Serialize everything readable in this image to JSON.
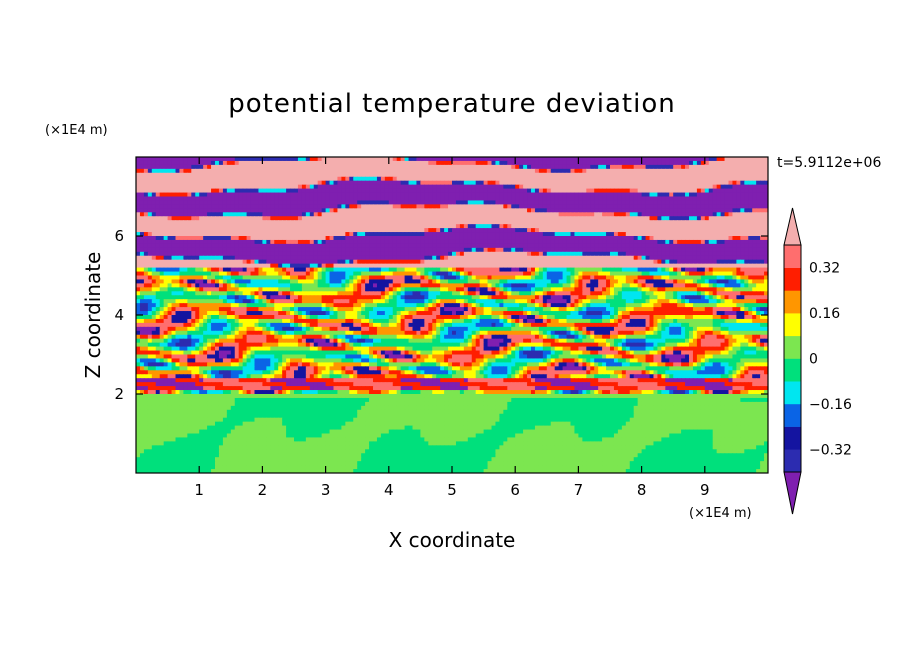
{
  "chart_data": {
    "type": "heatmap",
    "title": "potential temperature deviation",
    "xlabel": "X coordinate",
    "ylabel": "Z coordinate",
    "x_unit": "(×1E4 m)",
    "y_unit": "(×1E4 m)",
    "time_label": "t=5.9112e+06",
    "xlim": [
      0,
      10
    ],
    "ylim": [
      0,
      8
    ],
    "x_ticks": [
      1,
      2,
      3,
      4,
      5,
      6,
      7,
      8,
      9
    ],
    "y_ticks": [
      2,
      4,
      6
    ],
    "colorbar": {
      "levels": [
        -0.4,
        -0.32,
        -0.24,
        -0.16,
        -0.08,
        0,
        0.08,
        0.16,
        0.24,
        0.32,
        0.4
      ],
      "tick_labels": [
        "0.32",
        "0.16",
        "0",
        "−0.16",
        "−0.32"
      ],
      "tick_values": [
        0.32,
        0.16,
        0,
        -0.16,
        -0.32
      ],
      "colors": [
        "#7f1fb0",
        "#2c2cb0",
        "#1414a0",
        "#0a64e6",
        "#00e6f0",
        "#00e07c",
        "#7ce650",
        "#ffff00",
        "#ff9600",
        "#ff1e00",
        "#ff6e6e",
        "#f4aeae"
      ],
      "extend": "both"
    },
    "regions": [
      {
        "name": "upper layer",
        "z_range": [
          5.2,
          8
        ],
        "pattern": "alternating horizontal bands of pink and purple"
      },
      {
        "name": "middle layer",
        "z_range": [
          2,
          5.2
        ],
        "pattern": "wavy multicolor cells"
      },
      {
        "name": "lower layer",
        "z_range": [
          0,
          2
        ],
        "pattern": "green and light-green blobs"
      }
    ]
  }
}
